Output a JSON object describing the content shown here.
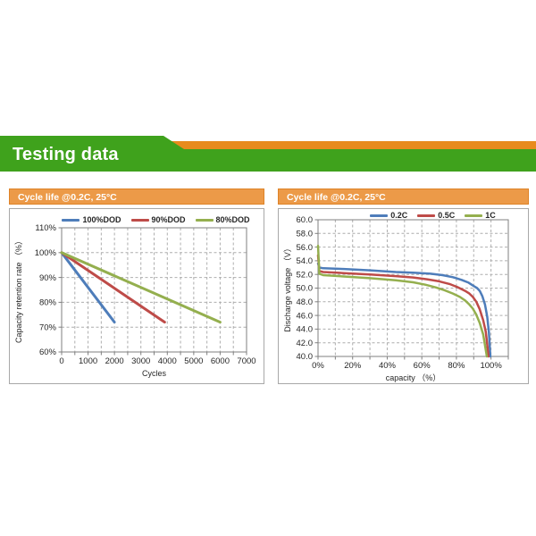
{
  "header": {
    "title": "Testing data",
    "banner_green": "#3FA21C",
    "banner_orange": "#E88B1D"
  },
  "panels": {
    "left_title": "Cycle life @0.2C, 25°C",
    "right_title": "Cycle life @0.2C, 25°C",
    "title_bg": "#EC9A48",
    "title_border": "#DE8328"
  },
  "chart_data": [
    {
      "type": "line",
      "title": "Cycle life @0.2C, 25°C",
      "xlabel": "Cycles",
      "ylabel": "Capacity retention rate （%）",
      "xlim": [
        0,
        7000
      ],
      "ylim": [
        60,
        110
      ],
      "x_grid_step": 500,
      "y_grid_step": 10,
      "x_tick_step": 500,
      "grid": "dashed",
      "legend_position": "top",
      "xticks": [
        0,
        1000,
        2000,
        3000,
        4000,
        5000,
        6000,
        7000
      ],
      "xtick_labels": [
        "0",
        "1000",
        "2000",
        "3000",
        "4000",
        "5000",
        "6000",
        "7000"
      ],
      "yticks": [
        60,
        70,
        80,
        90,
        100,
        110
      ],
      "ytick_labels": [
        "60%",
        "70%",
        "80%",
        "90%",
        "100%",
        "110%"
      ],
      "series": [
        {
          "name": "100%DOD",
          "color": "#4E7DBA",
          "width": 3,
          "points": [
            [
              0,
              100
            ],
            [
              2000,
              72
            ]
          ]
        },
        {
          "name": "90%DOD",
          "color": "#BE4B48",
          "width": 3,
          "points": [
            [
              0,
              100
            ],
            [
              3900,
              72
            ]
          ]
        },
        {
          "name": "80%DOD",
          "color": "#94AF4E",
          "width": 3,
          "points": [
            [
              0,
              100
            ],
            [
              6000,
              72
            ]
          ]
        }
      ]
    },
    {
      "type": "line",
      "title": "Cycle life @0.2C, 25°C",
      "xlabel": "capacity （%）",
      "ylabel": "Discharge voltage （V）",
      "xlim": [
        0,
        110
      ],
      "ylim": [
        40,
        60
      ],
      "x_grid_step": 10,
      "y_grid_step": 2,
      "x_tick_step": 10,
      "grid": "dashed",
      "legend_position": "top",
      "xticks": [
        0,
        20,
        40,
        60,
        80,
        100
      ],
      "xtick_labels": [
        "0%",
        "20%",
        "40%",
        "60%",
        "80%",
        "100%"
      ],
      "yticks": [
        40,
        42,
        44,
        46,
        48,
        50,
        52,
        54,
        56,
        58,
        60
      ],
      "ytick_labels": [
        "40.0",
        "42.0",
        "44.0",
        "46.0",
        "48.0",
        "50.0",
        "52.0",
        "54.0",
        "56.0",
        "58.0",
        "60.0"
      ],
      "series": [
        {
          "name": "0.2C",
          "color": "#4E7DBA",
          "width": 2.5,
          "points": [
            [
              0,
              53.6
            ],
            [
              0.8,
              53.0
            ],
            [
              3,
              52.9
            ],
            [
              15,
              52.8
            ],
            [
              30,
              52.6
            ],
            [
              45,
              52.35
            ],
            [
              55,
              52.25
            ],
            [
              65,
              52.1
            ],
            [
              72,
              51.9
            ],
            [
              78,
              51.6
            ],
            [
              83,
              51.2
            ],
            [
              87,
              50.8
            ],
            [
              90,
              50.3
            ],
            [
              92,
              50.0
            ],
            [
              93.5,
              49.6
            ],
            [
              95,
              48.8
            ],
            [
              96.5,
              47.6
            ],
            [
              97.8,
              45.8
            ],
            [
              98.8,
              43.5
            ],
            [
              99.6,
              40.0
            ]
          ]
        },
        {
          "name": "0.5C",
          "color": "#BE4B48",
          "width": 2.5,
          "points": [
            [
              0,
              54.8
            ],
            [
              0.8,
              52.5
            ],
            [
              3,
              52.35
            ],
            [
              15,
              52.2
            ],
            [
              30,
              52.0
            ],
            [
              45,
              51.75
            ],
            [
              55,
              51.55
            ],
            [
              63,
              51.3
            ],
            [
              70,
              51.0
            ],
            [
              76,
              50.6
            ],
            [
              81,
              50.1
            ],
            [
              85,
              49.6
            ],
            [
              87.5,
              49.2
            ],
            [
              89.5,
              48.7
            ],
            [
              91.5,
              48.0
            ],
            [
              93.5,
              46.9
            ],
            [
              95.5,
              45.3
            ],
            [
              97,
              43.6
            ],
            [
              98.6,
              40.0
            ]
          ]
        },
        {
          "name": "1C",
          "color": "#94AF4E",
          "width": 2.5,
          "points": [
            [
              0,
              56.2
            ],
            [
              0.8,
              52.1
            ],
            [
              3,
              51.9
            ],
            [
              15,
              51.7
            ],
            [
              30,
              51.45
            ],
            [
              45,
              51.15
            ],
            [
              55,
              50.85
            ],
            [
              62,
              50.5
            ],
            [
              68,
              50.1
            ],
            [
              73,
              49.7
            ],
            [
              78,
              49.2
            ],
            [
              82,
              48.7
            ],
            [
              85,
              48.2
            ],
            [
              87.5,
              47.6
            ],
            [
              89.5,
              47.0
            ],
            [
              91.5,
              46.1
            ],
            [
              93.5,
              44.9
            ],
            [
              95.5,
              43.2
            ],
            [
              97.6,
              40.0
            ]
          ]
        }
      ]
    }
  ]
}
